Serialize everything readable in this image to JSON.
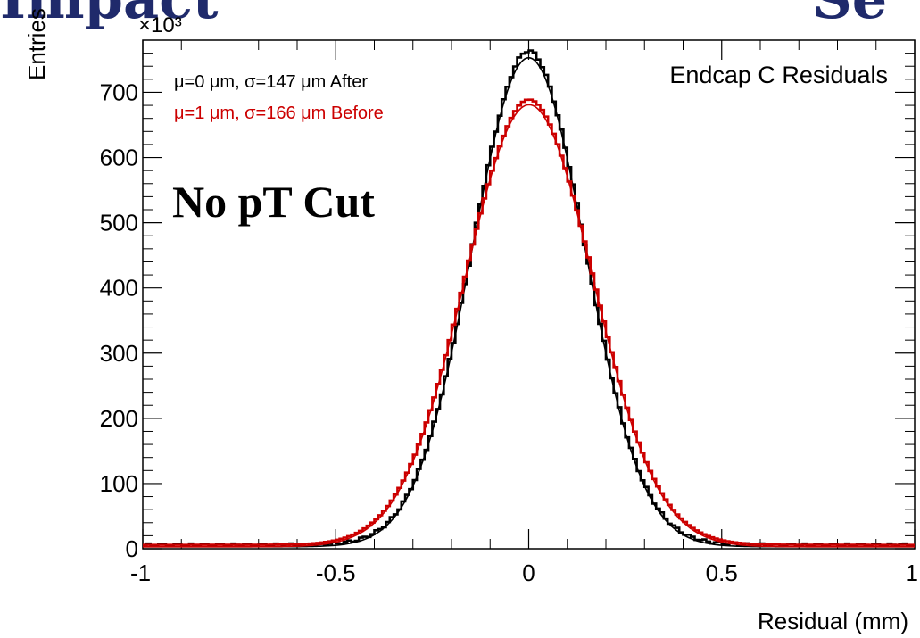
{
  "header": {
    "left_fragment": "Impact",
    "right_fragment": "Se"
  },
  "chart_data": {
    "type": "line",
    "title": "Endcap C Residuals",
    "xlabel": "Residual (mm)",
    "ylabel": "Entries",
    "y_multiplier": "×10³",
    "xlim": [
      -1,
      1
    ],
    "ylim": [
      0,
      780
    ],
    "x_ticks": [
      -1,
      -0.5,
      0,
      0.5,
      1
    ],
    "x_tick_labels": [
      "-1",
      "-0.5",
      "0",
      "0.5",
      "1"
    ],
    "y_ticks": [
      0,
      100,
      200,
      300,
      400,
      500,
      600,
      700
    ],
    "y_tick_labels": [
      "0",
      "100",
      "200",
      "300",
      "400",
      "500",
      "600",
      "700"
    ],
    "grid": false,
    "legend_position": "top-left",
    "annotation": "No pT Cut",
    "series": [
      {
        "name": "μ=0 μm, σ=147 μm After",
        "color": "#000000",
        "mean_mm": 0.0,
        "sigma_mm": 0.147,
        "peak": 750
      },
      {
        "name": "μ=1 μm, σ=166 μm Before",
        "color": "#cc0000",
        "mean_mm": 0.001,
        "sigma_mm": 0.166,
        "peak": 678
      }
    ]
  }
}
